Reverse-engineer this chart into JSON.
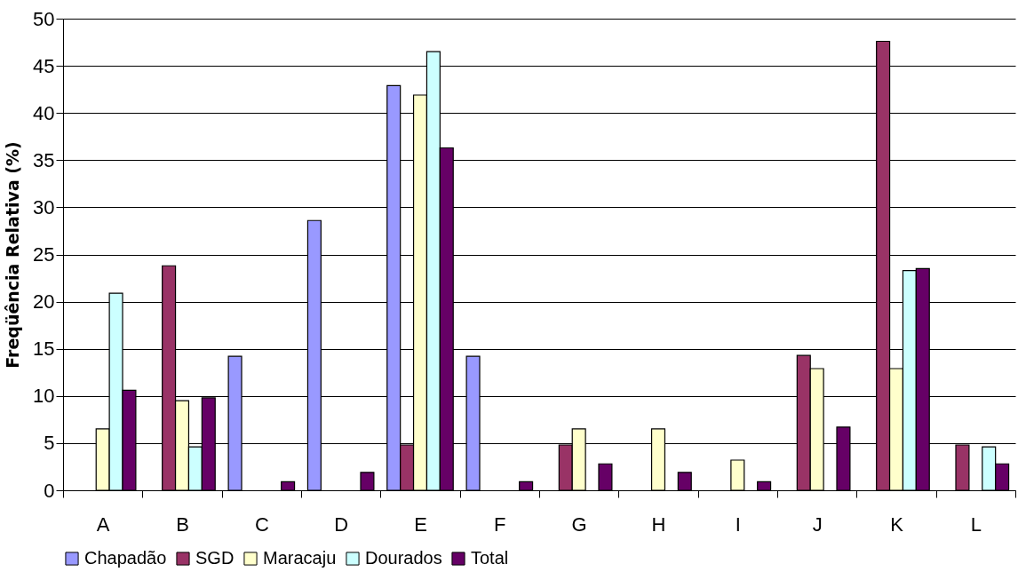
{
  "chart_data": {
    "type": "bar",
    "ylabel": "Freqüência Relativa (%)",
    "categories": [
      "A",
      "B",
      "C",
      "D",
      "E",
      "F",
      "G",
      "H",
      "I",
      "J",
      "K",
      "L"
    ],
    "series": [
      {
        "name": "Chapadão",
        "color": "#9999ff",
        "values": [
          null,
          null,
          14.2,
          28.6,
          42.9,
          14.2,
          null,
          null,
          null,
          null,
          null,
          null
        ]
      },
      {
        "name": "SGD",
        "color": "#993366",
        "values": [
          null,
          23.8,
          null,
          null,
          4.8,
          null,
          4.8,
          null,
          null,
          14.3,
          47.6,
          4.8
        ]
      },
      {
        "name": "Maracaju",
        "color": "#ffffcc",
        "values": [
          6.5,
          9.5,
          null,
          null,
          41.9,
          null,
          6.5,
          6.5,
          3.2,
          12.9,
          12.9,
          null
        ]
      },
      {
        "name": "Dourados",
        "color": "#ccffff",
        "values": [
          20.9,
          4.6,
          null,
          null,
          46.5,
          null,
          null,
          null,
          null,
          null,
          23.3,
          4.6
        ]
      },
      {
        "name": "Total",
        "color": "#660066",
        "values": [
          10.6,
          9.8,
          0.9,
          1.9,
          36.3,
          0.9,
          2.8,
          1.9,
          0.9,
          6.7,
          23.5,
          2.8
        ]
      }
    ],
    "ylim": [
      0,
      50
    ],
    "yticks": [
      0,
      5,
      10,
      15,
      20,
      25,
      30,
      35,
      40,
      45,
      50
    ],
    "grid": "y",
    "legend": "bottom"
  }
}
